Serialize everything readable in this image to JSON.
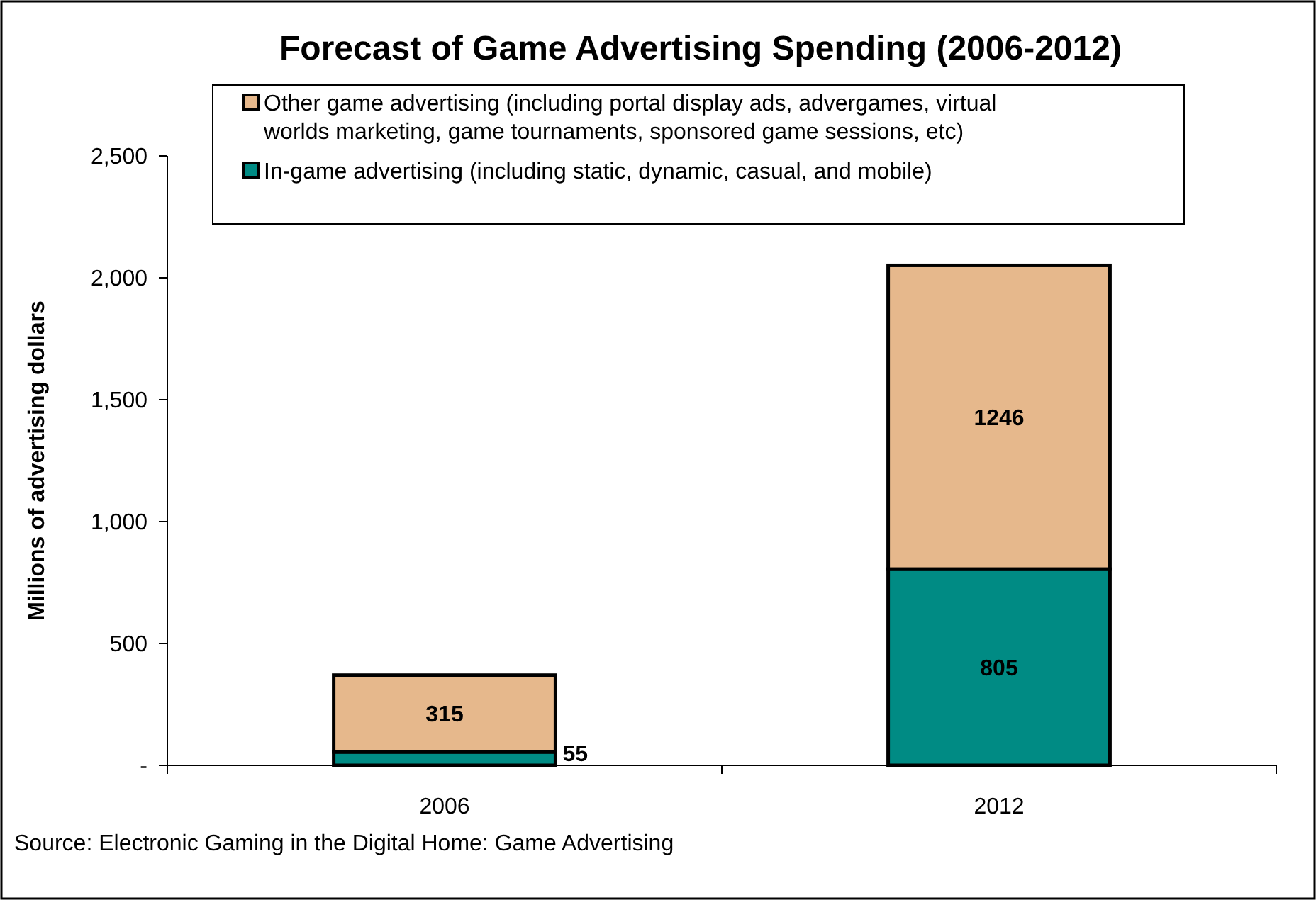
{
  "chart_data": {
    "type": "bar",
    "title": "Forecast of Game Advertising Spending (2006-2012)",
    "ylabel": "Millions of advertising dollars",
    "categories": [
      "2006",
      "2012"
    ],
    "stacked": true,
    "series": [
      {
        "name": "In-game advertising (including static, dynamic, casual, and mobile)",
        "color": "#008b84",
        "values": [
          55,
          805
        ]
      },
      {
        "name": "Other game advertising (including portal display ads, advergames, virtual worlds marketing, game tournaments, sponsored game sessions, etc)",
        "color": "#e6b88c",
        "values": [
          315,
          1246
        ]
      }
    ],
    "ylim": [
      0,
      2500
    ],
    "yticks": [
      {
        "value": 0,
        "label": "-"
      },
      {
        "value": 500,
        "label": "500"
      },
      {
        "value": 1000,
        "label": "1,000"
      },
      {
        "value": 1500,
        "label": "1,500"
      },
      {
        "value": 2000,
        "label": "2,000"
      },
      {
        "value": 2500,
        "label": "2,500"
      }
    ],
    "data_labels": true,
    "grid": false,
    "legend": "top",
    "annotations": [
      "Source: Electronic Gaming in the Digital Home: Game Advertising"
    ]
  }
}
